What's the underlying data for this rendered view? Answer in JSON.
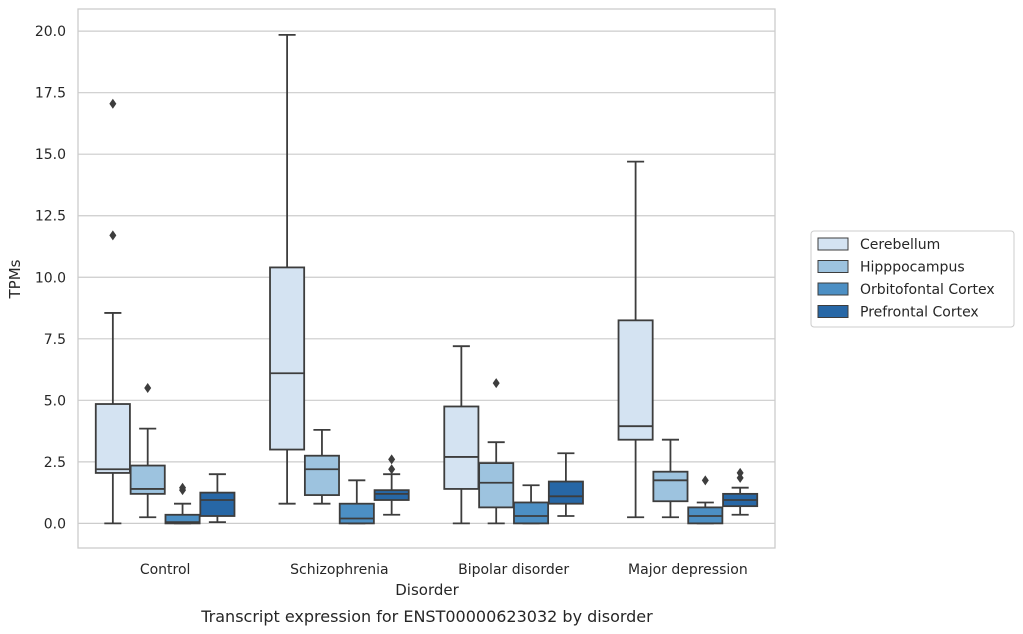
{
  "chart_data": {
    "type": "box",
    "title": "",
    "caption": "Transcript expression for ENST00000623032 by disorder",
    "xlabel": "Disorder",
    "ylabel": "TPMs",
    "ylim": [
      -1.0,
      20.9
    ],
    "yticks": [
      "0.0",
      "2.5",
      "5.0",
      "7.5",
      "10.0",
      "12.5",
      "15.0",
      "17.5",
      "20.0"
    ],
    "ytick_values": [
      0,
      2.5,
      5,
      7.5,
      10,
      12.5,
      15,
      17.5,
      20
    ],
    "grid": "horizontal",
    "legend_position": "right",
    "categories": [
      "Control",
      "Schizophrenia",
      "Bipolar disorder",
      "Major depression"
    ],
    "series": [
      {
        "name": "Cerebellum",
        "color": "#d4e3f2",
        "boxes": [
          {
            "whisker_low": 0.0,
            "q1": 2.05,
            "median": 2.2,
            "q3": 4.85,
            "whisker_high": 8.55,
            "outliers": [
              11.7,
              17.05
            ]
          },
          {
            "whisker_low": 0.8,
            "q1": 3.0,
            "median": 6.1,
            "q3": 10.4,
            "whisker_high": 19.85,
            "outliers": []
          },
          {
            "whisker_low": 0.0,
            "q1": 1.4,
            "median": 2.7,
            "q3": 4.75,
            "whisker_high": 7.2,
            "outliers": []
          },
          {
            "whisker_low": 0.25,
            "q1": 3.4,
            "median": 3.95,
            "q3": 8.25,
            "whisker_high": 14.7,
            "outliers": []
          }
        ]
      },
      {
        "name": "Hipppocampus",
        "color": "#9dc3df",
        "boxes": [
          {
            "whisker_low": 0.25,
            "q1": 1.2,
            "median": 1.4,
            "q3": 2.35,
            "whisker_high": 3.85,
            "outliers": [
              5.5
            ]
          },
          {
            "whisker_low": 0.8,
            "q1": 1.15,
            "median": 2.2,
            "q3": 2.75,
            "whisker_high": 3.8,
            "outliers": []
          },
          {
            "whisker_low": 0.0,
            "q1": 0.65,
            "median": 1.65,
            "q3": 2.45,
            "whisker_high": 3.3,
            "outliers": [
              5.7
            ]
          },
          {
            "whisker_low": 0.25,
            "q1": 0.9,
            "median": 1.75,
            "q3": 2.1,
            "whisker_high": 3.4,
            "outliers": []
          }
        ]
      },
      {
        "name": "Orbitofontal Cortex",
        "color": "#4c8fc4",
        "boxes": [
          {
            "whisker_low": 0.0,
            "q1": 0.0,
            "median": 0.05,
            "q3": 0.35,
            "whisker_high": 0.8,
            "outliers": [
              1.35,
              1.45
            ]
          },
          {
            "whisker_low": 0.0,
            "q1": 0.0,
            "median": 0.2,
            "q3": 0.8,
            "whisker_high": 1.75,
            "outliers": []
          },
          {
            "whisker_low": 0.0,
            "q1": 0.0,
            "median": 0.3,
            "q3": 0.85,
            "whisker_high": 1.55,
            "outliers": []
          },
          {
            "whisker_low": 0.0,
            "q1": 0.0,
            "median": 0.3,
            "q3": 0.65,
            "whisker_high": 0.85,
            "outliers": [
              1.75
            ]
          }
        ]
      },
      {
        "name": "Prefrontal Cortex",
        "color": "#2767a6",
        "boxes": [
          {
            "whisker_low": 0.05,
            "q1": 0.3,
            "median": 0.95,
            "q3": 1.25,
            "whisker_high": 2.0,
            "outliers": []
          },
          {
            "whisker_low": 0.35,
            "q1": 0.95,
            "median": 1.2,
            "q3": 1.35,
            "whisker_high": 2.0,
            "outliers": [
              2.2,
              2.6
            ]
          },
          {
            "whisker_low": 0.3,
            "q1": 0.8,
            "median": 1.1,
            "q3": 1.7,
            "whisker_high": 2.85,
            "outliers": []
          },
          {
            "whisker_low": 0.35,
            "q1": 0.7,
            "median": 0.95,
            "q3": 1.2,
            "whisker_high": 1.45,
            "outliers": [
              1.85,
              2.05
            ]
          }
        ]
      }
    ]
  }
}
